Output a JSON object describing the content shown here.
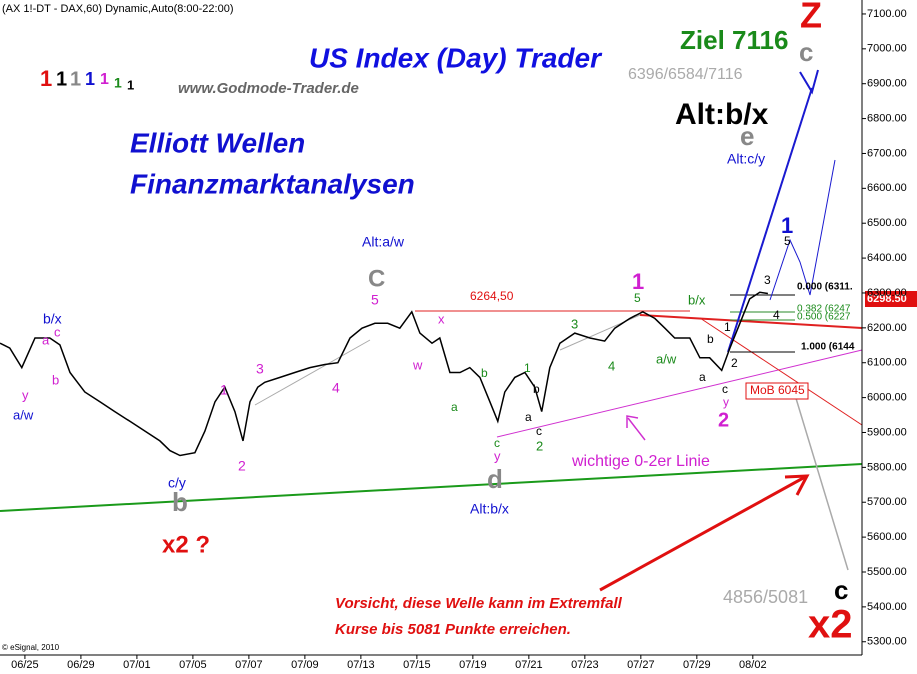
{
  "chart_data": {
    "type": "line",
    "header": "(AX 1!-DT - DAX,60) Dynamic,Auto(8:00-22:00)",
    "title": "US Index (Day) Trader",
    "subtitle": "www.Godmode-Trader.de",
    "copyright": "© eSignal, 2010",
    "color": "#000000",
    "x": [
      -0.89,
      -0.54,
      -0.11,
      0.36,
      0.89,
      1.25,
      1.61,
      2.14,
      2.68,
      3.21,
      3.75,
      4.29,
      4.82,
      5.18,
      5.54,
      6.07,
      6.43,
      6.79,
      7.14,
      7.5,
      7.79,
      8.04,
      8.32,
      8.57,
      9.11,
      9.64,
      10.18,
      10.71,
      11.18,
      11.61,
      12.04,
      12.5,
      12.96,
      13.39,
      13.82,
      14.11,
      14.54,
      14.82,
      15.18,
      15.54,
      15.89,
      16.25,
      16.61,
      16.89,
      17.14,
      17.5,
      17.86,
      18.21,
      18.46,
      18.75,
      19.11,
      19.64,
      20.18,
      20.71,
      21.07,
      21.61,
      22.07,
      22.5,
      22.86,
      23.21,
      23.75,
      24.11,
      24.46,
      24.89,
      25.18,
      25.54,
      25.89,
      26.25,
      26.54
    ],
    "values": [
      6156,
      6142,
      6086,
      6171,
      6171,
      6151,
      6072,
      6016,
      5988,
      5960,
      5932,
      5904,
      5876,
      5848,
      5834,
      5842,
      5904,
      5988,
      6030,
      5960,
      5876,
      5988,
      6030,
      6044,
      6058,
      6072,
      6086,
      6095,
      6100,
      6171,
      6199,
      6213,
      6213,
      6199,
      6246,
      6185,
      6156,
      6171,
      6072,
      6072,
      6086,
      6058,
      5988,
      5932,
      6016,
      6058,
      6072,
      6030,
      5960,
      6086,
      6156,
      6185,
      6171,
      6162,
      6199,
      6227,
      6246,
      6227,
      6199,
      6171,
      6171,
      6114,
      6114,
      6078,
      6142,
      6213,
      6283,
      6302,
      6298.5
    ],
    "xlim": [
      -0.89,
      29.9
    ],
    "xticks": [
      {
        "value": 0,
        "label": "06/25"
      },
      {
        "value": 2,
        "label": "06/29"
      },
      {
        "value": 4,
        "label": "07/01"
      },
      {
        "value": 6,
        "label": "07/05"
      },
      {
        "value": 8,
        "label": "07/07"
      },
      {
        "value": 10,
        "label": "07/09"
      },
      {
        "value": 12,
        "label": "07/13"
      },
      {
        "value": 14,
        "label": "07/15"
      },
      {
        "value": 16,
        "label": "07/19"
      },
      {
        "value": 18,
        "label": "07/21"
      },
      {
        "value": 20,
        "label": "07/23"
      },
      {
        "value": 22,
        "label": "07/27"
      },
      {
        "value": 24,
        "label": "07/29"
      },
      {
        "value": 26,
        "label": "08/02"
      }
    ],
    "ylim": [
      5262,
      7140
    ],
    "yticks": [
      {
        "value": 5300,
        "label": "5300.00"
      },
      {
        "value": 5400,
        "label": "5400.00"
      },
      {
        "value": 5500,
        "label": "5500.00"
      },
      {
        "value": 5600,
        "label": "5600.00"
      },
      {
        "value": 5700,
        "label": "5700.00"
      },
      {
        "value": 5800,
        "label": "5800.00"
      },
      {
        "value": 5900,
        "label": "5900.00"
      },
      {
        "value": 6000,
        "label": "6000.00"
      },
      {
        "value": 6100,
        "label": "6100.00"
      },
      {
        "value": 6200,
        "label": "6200.00"
      },
      {
        "value": 6300,
        "label": "6300.00"
      },
      {
        "value": 6400,
        "label": "6400.00"
      },
      {
        "value": 6500,
        "label": "6500.00"
      },
      {
        "value": 6600,
        "label": "6600.00"
      },
      {
        "value": 6700,
        "label": "6700.00"
      },
      {
        "value": 6800,
        "label": "6800.00"
      },
      {
        "value": 6900,
        "label": "6900.00"
      },
      {
        "value": 7000,
        "label": "7000.00"
      },
      {
        "value": 7100,
        "label": "7100.00"
      }
    ],
    "last_price": "6298.50",
    "annotations": [
      "1",
      "1",
      "1",
      "1",
      "1",
      "1",
      "1",
      "Elliott Wellen",
      "Finanzmarktanalysen",
      "Ziel 7116",
      "Z",
      "c",
      "6396/6584/7116",
      "Alt:b/x",
      "e",
      "Alt:c/y",
      "Alt:a/w",
      "C",
      "5",
      "6264,50",
      "x",
      "w",
      "1",
      "5",
      "b/x",
      "1",
      "5",
      "3",
      "4",
      "2",
      "1",
      "b",
      "a",
      "c",
      "y",
      "2",
      "0.000 (6311.",
      "0.382 (6247",
      "0.500 (6227",
      "1.000 (6144",
      "MoB 6045",
      "b/x",
      "a",
      "c",
      "b",
      "y",
      "a/w",
      "1",
      "2",
      "3",
      "4",
      "c/y",
      "b",
      "x2 ?",
      "a",
      "b",
      "c",
      "y",
      "d",
      "Alt:b/x",
      "1",
      "a",
      "b",
      "c",
      "2",
      "3",
      "4",
      "a/w",
      "wichtige 0-2er Linie",
      "4856/5081",
      "c",
      "x2",
      "Vorsicht, diese Welle kann im Extremfall",
      "Kurse bis 5081 Punkte erreichen."
    ]
  }
}
